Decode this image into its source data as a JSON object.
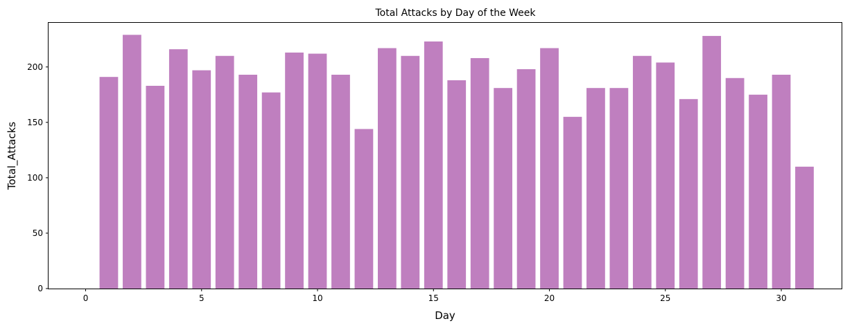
{
  "chart_data": {
    "type": "bar",
    "title": "Total Attacks by Day of the Week",
    "xlabel": "Day",
    "ylabel": "Total_Attacks",
    "x": [
      1,
      2,
      3,
      4,
      5,
      6,
      7,
      8,
      9,
      10,
      11,
      12,
      13,
      14,
      15,
      16,
      17,
      18,
      19,
      20,
      21,
      22,
      23,
      24,
      25,
      26,
      27,
      28,
      29,
      30,
      31
    ],
    "values": [
      191,
      229,
      183,
      216,
      197,
      210,
      193,
      177,
      213,
      212,
      193,
      144,
      217,
      210,
      223,
      188,
      208,
      181,
      198,
      217,
      155,
      181,
      181,
      210,
      204,
      171,
      228,
      190,
      175,
      193,
      110
    ],
    "xticks": [
      "0",
      "5",
      "10",
      "15",
      "20",
      "25",
      "30"
    ],
    "yticks": [
      "0",
      "50",
      "100",
      "150",
      "200"
    ],
    "xlim": [
      -1.6,
      32.6
    ],
    "ylim": [
      0,
      240.45
    ],
    "bar_color": "#bf7fbf",
    "grid": false,
    "legend": "none"
  }
}
